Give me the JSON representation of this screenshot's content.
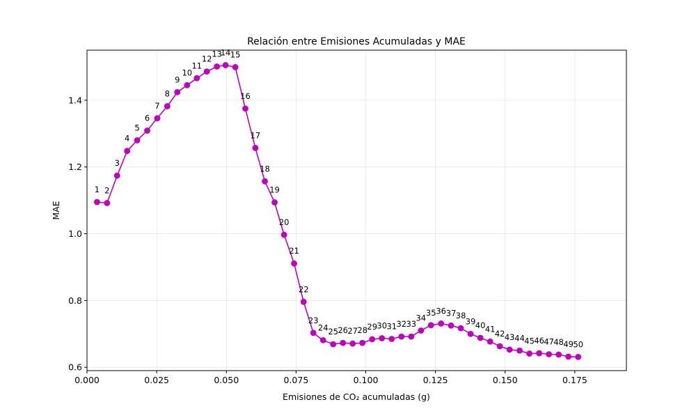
{
  "chart_data": {
    "type": "line",
    "title": "Relación entre Emisiones Acumuladas y MAE",
    "xlabel": "Emisiones de CO₂ acumuladas (g)",
    "ylabel": "MAE",
    "xlim": [
      0.0,
      0.1935
    ],
    "ylim": [
      0.59,
      1.55
    ],
    "xticks": [
      0.0,
      0.025,
      0.05,
      0.075,
      0.1,
      0.125,
      0.15,
      0.175
    ],
    "xtick_labels": [
      "0.000",
      "0.025",
      "0.050",
      "0.075",
      "0.100",
      "0.125",
      "0.150",
      "0.175"
    ],
    "yticks": [
      0.6,
      0.8,
      1.0,
      1.2,
      1.4
    ],
    "ytick_labels": [
      "0.6",
      "0.8",
      "1.0",
      "1.2",
      "1.4"
    ],
    "grid": true,
    "color": "#bf00bf",
    "series": [
      {
        "x": [
          0.0036,
          0.0072,
          0.0108,
          0.0144,
          0.018,
          0.0216,
          0.0252,
          0.0288,
          0.0324,
          0.0359,
          0.0394,
          0.043,
          0.0466,
          0.0497,
          0.0532,
          0.0568,
          0.0604,
          0.0638,
          0.0673,
          0.0707,
          0.0743,
          0.0777,
          0.0812,
          0.0847,
          0.0883,
          0.0918,
          0.0953,
          0.0988,
          0.1023,
          0.1058,
          0.1093,
          0.1128,
          0.1163,
          0.1198,
          0.1234,
          0.127,
          0.1306,
          0.1341,
          0.1376,
          0.1411,
          0.1446,
          0.1481,
          0.1516,
          0.1552,
          0.1587,
          0.1622,
          0.1657,
          0.1692,
          0.1727,
          0.1762
        ],
        "y": [
          1.095,
          1.092,
          1.174,
          1.248,
          1.28,
          1.309,
          1.346,
          1.382,
          1.424,
          1.445,
          1.466,
          1.486,
          1.501,
          1.505,
          1.499,
          1.375,
          1.257,
          1.157,
          1.094,
          0.997,
          0.911,
          0.796,
          0.703,
          0.681,
          0.669,
          0.673,
          0.671,
          0.673,
          0.684,
          0.687,
          0.685,
          0.692,
          0.692,
          0.71,
          0.726,
          0.731,
          0.725,
          0.717,
          0.7,
          0.688,
          0.677,
          0.663,
          0.653,
          0.65,
          0.641,
          0.642,
          0.639,
          0.638,
          0.632,
          0.631
        ],
        "labels": [
          "1",
          "2",
          "3",
          "4",
          "5",
          "6",
          "7",
          "8",
          "9",
          "10",
          "11",
          "12",
          "13",
          "14",
          "15",
          "16",
          "17",
          "18",
          "19",
          "20",
          "21",
          "22",
          "23",
          "24",
          "25",
          "26",
          "27",
          "28",
          "29",
          "30",
          "31",
          "32",
          "33",
          "34",
          "35",
          "36",
          "37",
          "38",
          "39",
          "40",
          "41",
          "42",
          "43",
          "44",
          "45",
          "46",
          "47",
          "48",
          "49",
          "50"
        ]
      }
    ]
  }
}
